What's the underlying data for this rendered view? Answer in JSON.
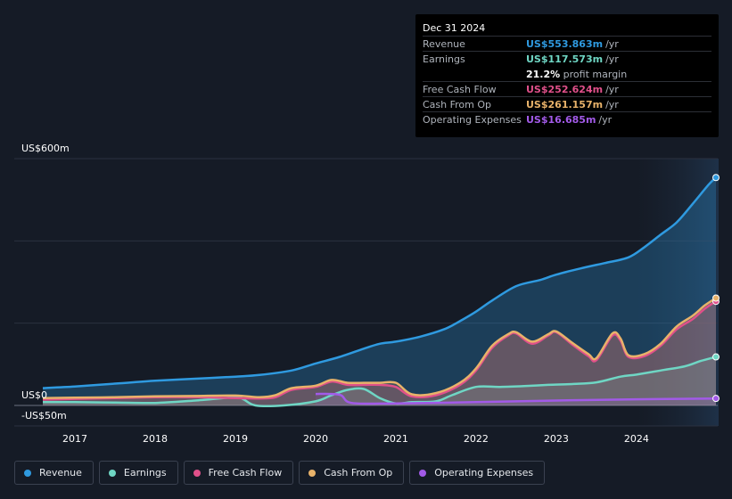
{
  "tooltip": {
    "date": "Dec 31 2024",
    "rows": [
      {
        "label": "Revenue",
        "value": "US$553.863m",
        "unit": "/yr",
        "color": "#2f9ae0"
      },
      {
        "label": "Earnings",
        "value": "US$117.573m",
        "unit": "/yr",
        "color": "#6fd6c4"
      },
      {
        "label": "Free Cash Flow",
        "value": "US$252.624m",
        "unit": "/yr",
        "color": "#e0508a"
      },
      {
        "label": "Cash From Op",
        "value": "US$261.157m",
        "unit": "/yr",
        "color": "#e8b26a"
      },
      {
        "label": "Operating Expenses",
        "value": "US$16.685m",
        "unit": "/yr",
        "color": "#a25ae8"
      }
    ],
    "margin_value": "21.2%",
    "margin_label": "profit margin"
  },
  "chart_data": {
    "type": "area",
    "y_axis_labels": {
      "top": "US$600m",
      "zero": "US$0",
      "bottom": "-US$50m"
    },
    "ylim": [
      -50,
      600
    ],
    "xlim": [
      2016.6,
      2024.99
    ],
    "x_ticks": [
      "2017",
      "2018",
      "2019",
      "2020",
      "2021",
      "2022",
      "2023",
      "2024"
    ],
    "x_tick_values": [
      2017,
      2018,
      2019,
      2020,
      2021,
      2022,
      2023,
      2024
    ],
    "highlight_start": 2024.0,
    "series": [
      {
        "name": "Revenue",
        "color": "#2f9ae0",
        "points": [
          [
            2016.6,
            42
          ],
          [
            2017.0,
            46
          ],
          [
            2017.5,
            53
          ],
          [
            2018.0,
            60
          ],
          [
            2018.5,
            65
          ],
          [
            2019.0,
            70
          ],
          [
            2019.3,
            74
          ],
          [
            2019.7,
            85
          ],
          [
            2020.0,
            102
          ],
          [
            2020.3,
            118
          ],
          [
            2020.6,
            138
          ],
          [
            2020.8,
            150
          ],
          [
            2021.0,
            155
          ],
          [
            2021.3,
            167
          ],
          [
            2021.6,
            185
          ],
          [
            2021.8,
            205
          ],
          [
            2022.0,
            228
          ],
          [
            2022.2,
            255
          ],
          [
            2022.5,
            290
          ],
          [
            2022.8,
            305
          ],
          [
            2023.0,
            318
          ],
          [
            2023.3,
            333
          ],
          [
            2023.6,
            346
          ],
          [
            2023.9,
            360
          ],
          [
            2024.1,
            385
          ],
          [
            2024.3,
            415
          ],
          [
            2024.5,
            445
          ],
          [
            2024.7,
            490
          ],
          [
            2024.9,
            537
          ],
          [
            2024.99,
            554
          ]
        ]
      },
      {
        "name": "Earnings",
        "color": "#6fd6c4",
        "points": [
          [
            2016.6,
            8
          ],
          [
            2017.0,
            8
          ],
          [
            2017.5,
            7
          ],
          [
            2018.0,
            6
          ],
          [
            2018.5,
            12
          ],
          [
            2019.0,
            20
          ],
          [
            2019.1,
            15
          ],
          [
            2019.25,
            0
          ],
          [
            2019.6,
            0
          ],
          [
            2020.0,
            10
          ],
          [
            2020.2,
            25
          ],
          [
            2020.4,
            38
          ],
          [
            2020.6,
            40
          ],
          [
            2020.8,
            18
          ],
          [
            2021.0,
            5
          ],
          [
            2021.2,
            8
          ],
          [
            2021.5,
            10
          ],
          [
            2021.7,
            25
          ],
          [
            2022.0,
            45
          ],
          [
            2022.3,
            45
          ],
          [
            2022.6,
            47
          ],
          [
            2022.9,
            50
          ],
          [
            2023.2,
            52
          ],
          [
            2023.5,
            56
          ],
          [
            2023.8,
            70
          ],
          [
            2024.0,
            75
          ],
          [
            2024.3,
            85
          ],
          [
            2024.6,
            95
          ],
          [
            2024.8,
            108
          ],
          [
            2024.99,
            118
          ]
        ]
      },
      {
        "name": "Free Cash Flow",
        "color": "#e0508a",
        "points": [
          [
            2016.6,
            14
          ],
          [
            2017.0,
            16
          ],
          [
            2017.5,
            18
          ],
          [
            2018.0,
            20
          ],
          [
            2018.5,
            20
          ],
          [
            2019.0,
            18
          ],
          [
            2019.3,
            17
          ],
          [
            2019.5,
            20
          ],
          [
            2019.7,
            38
          ],
          [
            2020.0,
            45
          ],
          [
            2020.2,
            58
          ],
          [
            2020.4,
            50
          ],
          [
            2020.6,
            50
          ],
          [
            2020.8,
            50
          ],
          [
            2021.0,
            45
          ],
          [
            2021.2,
            22
          ],
          [
            2021.5,
            25
          ],
          [
            2021.8,
            50
          ],
          [
            2022.0,
            85
          ],
          [
            2022.2,
            140
          ],
          [
            2022.4,
            170
          ],
          [
            2022.5,
            175
          ],
          [
            2022.7,
            150
          ],
          [
            2022.9,
            170
          ],
          [
            2023.0,
            178
          ],
          [
            2023.2,
            148
          ],
          [
            2023.4,
            120
          ],
          [
            2023.5,
            110
          ],
          [
            2023.7,
            170
          ],
          [
            2023.8,
            158
          ],
          [
            2023.9,
            118
          ],
          [
            2024.1,
            120
          ],
          [
            2024.3,
            145
          ],
          [
            2024.5,
            185
          ],
          [
            2024.7,
            210
          ],
          [
            2024.85,
            235
          ],
          [
            2024.99,
            253
          ]
        ]
      },
      {
        "name": "Cash From Op",
        "color": "#e8b26a",
        "points": [
          [
            2016.6,
            18
          ],
          [
            2017.0,
            19
          ],
          [
            2017.5,
            20
          ],
          [
            2018.0,
            22
          ],
          [
            2018.5,
            23
          ],
          [
            2019.0,
            24
          ],
          [
            2019.3,
            20
          ],
          [
            2019.5,
            25
          ],
          [
            2019.7,
            42
          ],
          [
            2020.0,
            48
          ],
          [
            2020.2,
            62
          ],
          [
            2020.4,
            55
          ],
          [
            2020.6,
            55
          ],
          [
            2020.8,
            55
          ],
          [
            2021.0,
            55
          ],
          [
            2021.2,
            27
          ],
          [
            2021.5,
            30
          ],
          [
            2021.8,
            55
          ],
          [
            2022.0,
            90
          ],
          [
            2022.2,
            145
          ],
          [
            2022.4,
            173
          ],
          [
            2022.5,
            178
          ],
          [
            2022.7,
            155
          ],
          [
            2022.9,
            173
          ],
          [
            2023.0,
            180
          ],
          [
            2023.2,
            152
          ],
          [
            2023.4,
            125
          ],
          [
            2023.5,
            115
          ],
          [
            2023.7,
            175
          ],
          [
            2023.8,
            163
          ],
          [
            2023.9,
            122
          ],
          [
            2024.1,
            125
          ],
          [
            2024.3,
            150
          ],
          [
            2024.5,
            192
          ],
          [
            2024.7,
            218
          ],
          [
            2024.85,
            243
          ],
          [
            2024.99,
            261
          ]
        ]
      },
      {
        "name": "Operating Expenses",
        "color": "#a25ae8",
        "points": [
          [
            2020.0,
            28
          ],
          [
            2020.3,
            26
          ],
          [
            2020.45,
            6
          ],
          [
            2021.0,
            5
          ],
          [
            2022.0,
            8
          ],
          [
            2023.0,
            12
          ],
          [
            2024.0,
            15
          ],
          [
            2024.99,
            17
          ]
        ]
      }
    ]
  },
  "legend": [
    {
      "label": "Revenue",
      "color": "#2f9ae0"
    },
    {
      "label": "Earnings",
      "color": "#6fd6c4"
    },
    {
      "label": "Free Cash Flow",
      "color": "#e0508a"
    },
    {
      "label": "Cash From Op",
      "color": "#e8b26a"
    },
    {
      "label": "Operating Expenses",
      "color": "#a25ae8"
    }
  ]
}
